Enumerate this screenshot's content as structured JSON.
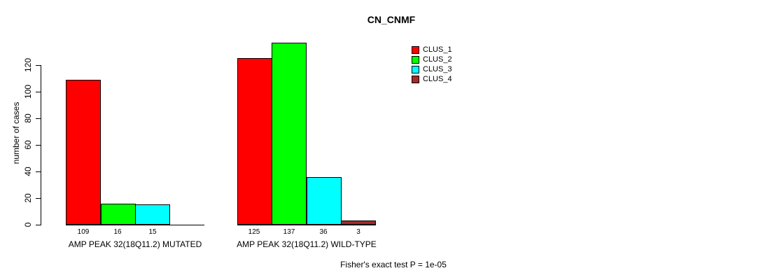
{
  "chart_data": {
    "type": "bar",
    "title": "CN_CNMF",
    "ylabel": "number of cases",
    "xlabel": "",
    "ylim": [
      0,
      120
    ],
    "yticks": [
      0,
      20,
      40,
      60,
      80,
      100,
      120
    ],
    "grid": false,
    "legend_position": "top-right",
    "series": [
      "CLUS_1",
      "CLUS_2",
      "CLUS_3",
      "CLUS_4"
    ],
    "legend": [
      {
        "name": "CLUS_1",
        "color": "#FF0000"
      },
      {
        "name": "CLUS_2",
        "color": "#00FF00"
      },
      {
        "name": "CLUS_3",
        "color": "#00FFFF"
      },
      {
        "name": "CLUS_4",
        "color": "#A52A2A"
      }
    ],
    "groups": [
      {
        "label": "AMP PEAK 32(18Q11.2) MUTATED",
        "values": [
          109,
          16,
          15,
          0
        ],
        "value_labels": [
          "109",
          "16",
          "15",
          ""
        ]
      },
      {
        "label": "AMP PEAK 32(18Q11.2) WILD-TYPE",
        "values": [
          125,
          137,
          36,
          3
        ],
        "value_labels": [
          "125",
          "137",
          "36",
          "3"
        ]
      }
    ],
    "annotation": "Fisher's exact test P = 1e-05",
    "colors": {
      "background": "#FFFFFF",
      "axis": "#000000",
      "text": "#000000"
    }
  }
}
